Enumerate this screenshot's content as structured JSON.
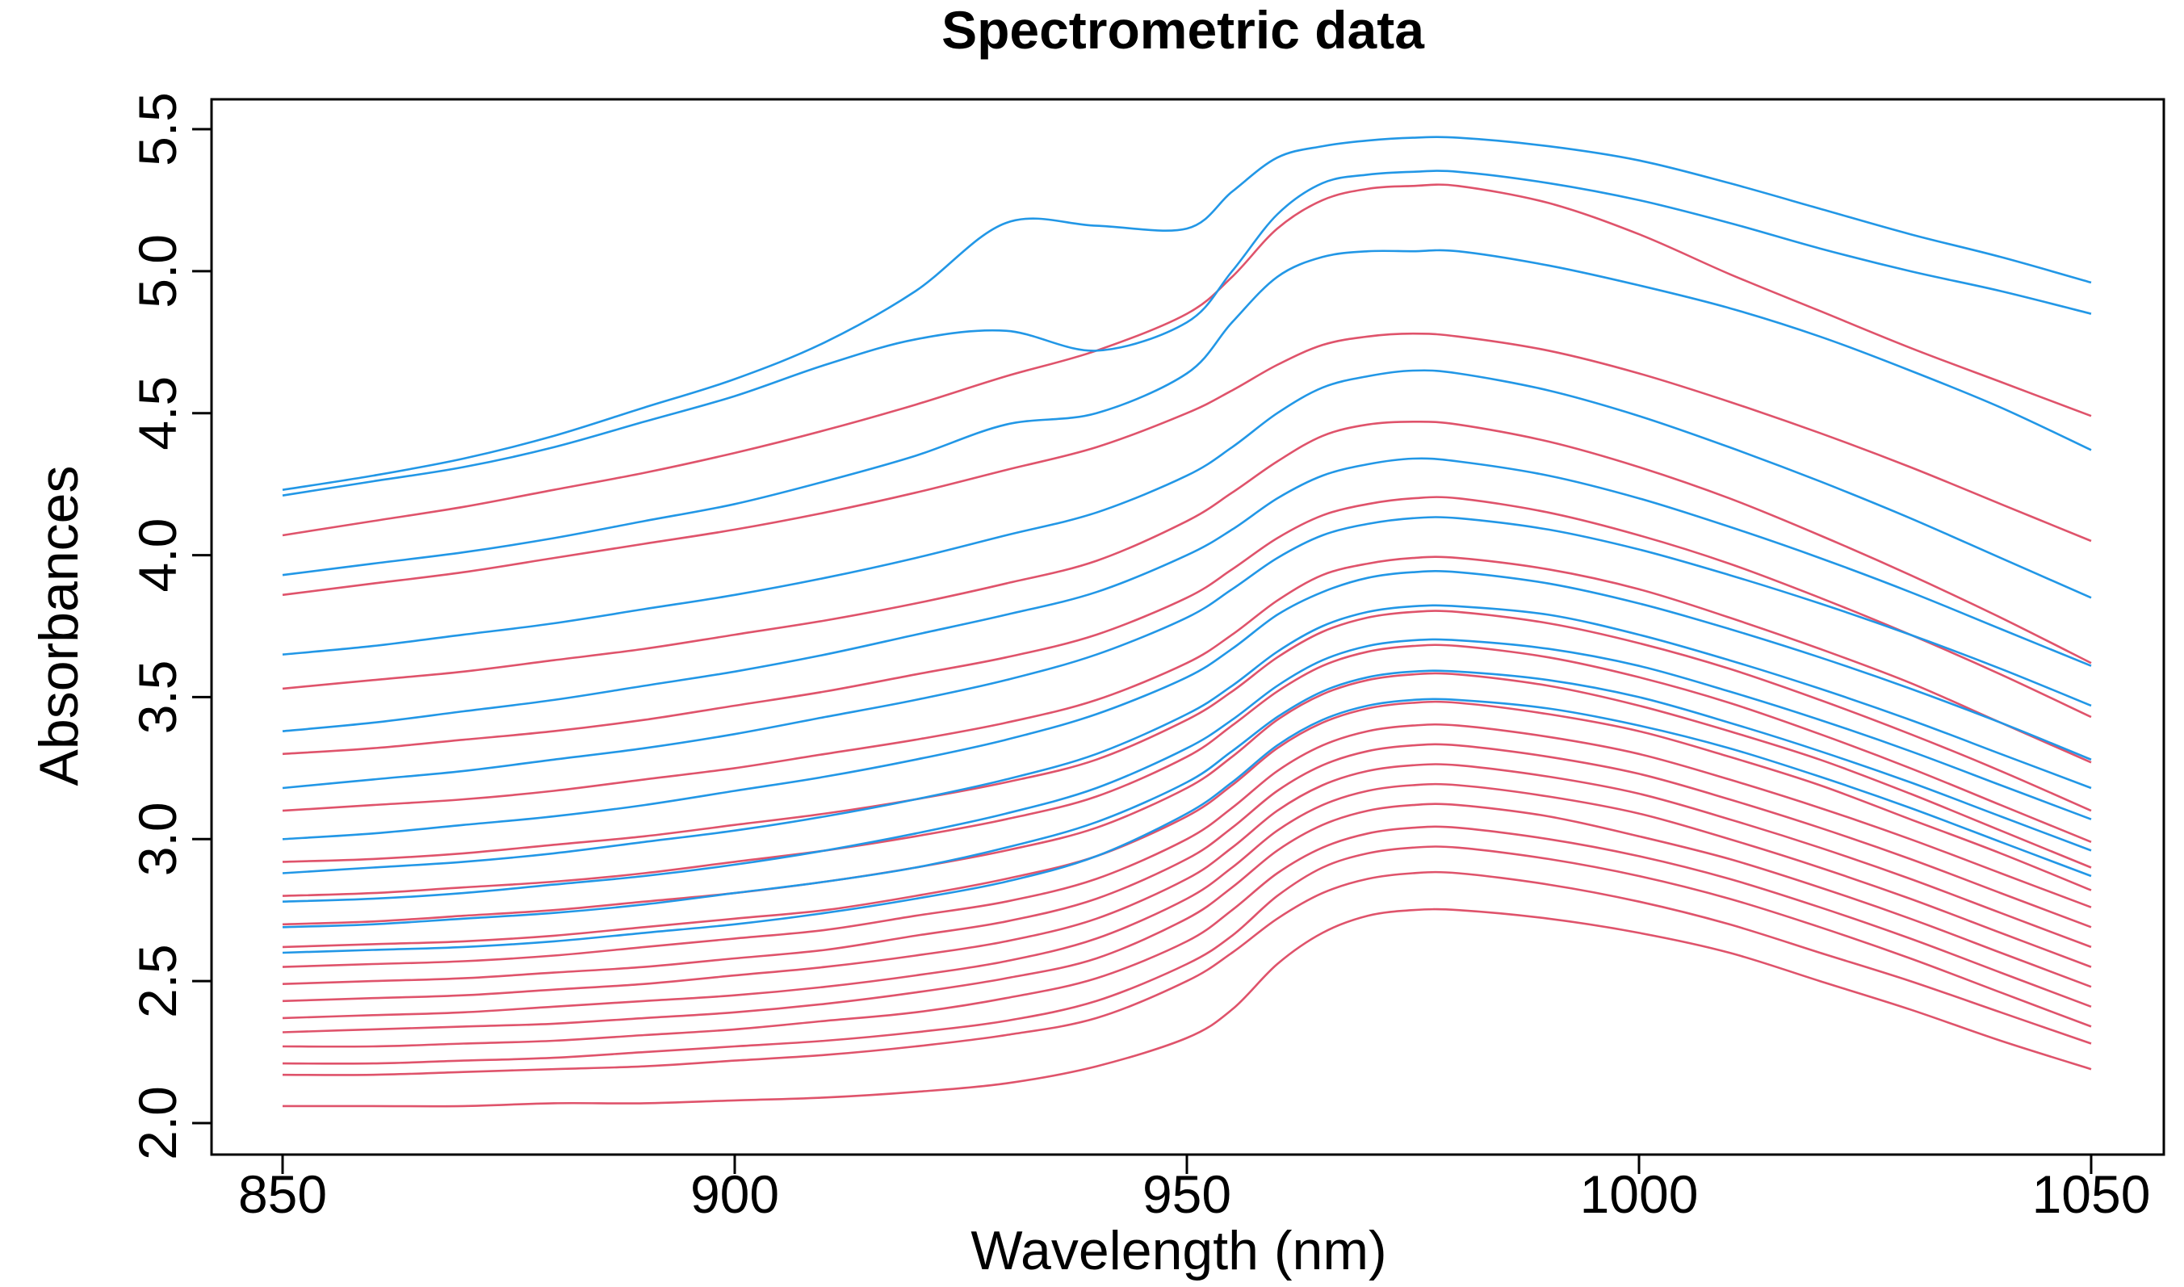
{
  "chart_data": {
    "type": "line",
    "title": "Spectrometric data",
    "xlabel": "Wavelength (nm)",
    "ylabel": "Absorbances",
    "xlim": [
      850,
      1050
    ],
    "ylim": [
      2.0,
      5.5
    ],
    "x_ticks": [
      "850",
      "900",
      "950",
      "1000",
      "1050"
    ],
    "y_ticks": [
      "2.0",
      "2.5",
      "3.0",
      "3.5",
      "4.0",
      "4.5",
      "5.0",
      "5.5"
    ],
    "grid": false,
    "legend": "none",
    "colors": {
      "group_a": "#DF536B",
      "group_b": "#2297E6"
    },
    "x": [
      850,
      860,
      870,
      880,
      890,
      900,
      910,
      920,
      930,
      940,
      950,
      955,
      960,
      965,
      970,
      975,
      980,
      990,
      1000,
      1010,
      1020,
      1030,
      1040,
      1050
    ],
    "series": [
      {
        "color": "#DF536B",
        "values": [
          2.06,
          2.06,
          2.06,
          2.07,
          2.07,
          2.08,
          2.09,
          2.11,
          2.14,
          2.2,
          2.3,
          2.4,
          2.56,
          2.67,
          2.73,
          2.75,
          2.75,
          2.72,
          2.67,
          2.6,
          2.5,
          2.4,
          2.29,
          2.19
        ]
      },
      {
        "color": "#DF536B",
        "values": [
          2.17,
          2.17,
          2.18,
          2.19,
          2.2,
          2.22,
          2.24,
          2.27,
          2.31,
          2.37,
          2.5,
          2.6,
          2.72,
          2.81,
          2.86,
          2.88,
          2.88,
          2.84,
          2.78,
          2.7,
          2.6,
          2.5,
          2.39,
          2.28
        ]
      },
      {
        "color": "#DF536B",
        "values": [
          2.21,
          2.21,
          2.22,
          2.23,
          2.25,
          2.27,
          2.29,
          2.32,
          2.36,
          2.43,
          2.56,
          2.66,
          2.8,
          2.9,
          2.95,
          2.97,
          2.97,
          2.93,
          2.87,
          2.79,
          2.69,
          2.58,
          2.46,
          2.34
        ]
      },
      {
        "color": "#DF536B",
        "values": [
          2.27,
          2.27,
          2.28,
          2.29,
          2.31,
          2.33,
          2.36,
          2.39,
          2.44,
          2.51,
          2.64,
          2.75,
          2.88,
          2.97,
          3.02,
          3.04,
          3.04,
          3.0,
          2.94,
          2.86,
          2.76,
          2.65,
          2.53,
          2.41
        ]
      },
      {
        "color": "#DF536B",
        "values": [
          2.32,
          2.33,
          2.34,
          2.35,
          2.37,
          2.39,
          2.42,
          2.46,
          2.51,
          2.58,
          2.72,
          2.83,
          2.96,
          3.05,
          3.1,
          3.12,
          3.12,
          3.08,
          3.01,
          2.93,
          2.83,
          2.72,
          2.6,
          2.48
        ]
      },
      {
        "color": "#DF536B",
        "values": [
          2.37,
          2.38,
          2.39,
          2.41,
          2.43,
          2.45,
          2.48,
          2.52,
          2.57,
          2.65,
          2.79,
          2.9,
          3.03,
          3.12,
          3.17,
          3.19,
          3.19,
          3.15,
          3.09,
          3.0,
          2.9,
          2.79,
          2.67,
          2.55
        ]
      },
      {
        "color": "#DF536B",
        "values": [
          2.43,
          2.44,
          2.45,
          2.47,
          2.49,
          2.52,
          2.55,
          2.59,
          2.64,
          2.72,
          2.86,
          2.97,
          3.1,
          3.19,
          3.24,
          3.26,
          3.26,
          3.22,
          3.16,
          3.07,
          2.97,
          2.86,
          2.74,
          2.62
        ]
      },
      {
        "color": "#DF536B",
        "values": [
          2.49,
          2.5,
          2.51,
          2.53,
          2.55,
          2.58,
          2.61,
          2.66,
          2.71,
          2.79,
          2.93,
          3.04,
          3.17,
          3.26,
          3.31,
          3.33,
          3.33,
          3.29,
          3.23,
          3.14,
          3.04,
          2.93,
          2.81,
          2.69
        ]
      },
      {
        "color": "#DF536B",
        "values": [
          2.55,
          2.56,
          2.57,
          2.59,
          2.62,
          2.65,
          2.68,
          2.73,
          2.78,
          2.86,
          3.0,
          3.11,
          3.24,
          3.33,
          3.38,
          3.4,
          3.4,
          3.36,
          3.3,
          3.21,
          3.11,
          3.0,
          2.88,
          2.76
        ]
      },
      {
        "color": "#DF536B",
        "values": [
          2.62,
          2.63,
          2.64,
          2.66,
          2.69,
          2.72,
          2.75,
          2.8,
          2.86,
          2.94,
          3.08,
          3.19,
          3.32,
          3.41,
          3.46,
          3.48,
          3.48,
          3.44,
          3.38,
          3.29,
          3.19,
          3.07,
          2.95,
          2.82
        ]
      },
      {
        "color": "#DF536B",
        "values": [
          2.7,
          2.71,
          2.73,
          2.75,
          2.78,
          2.81,
          2.85,
          2.9,
          2.96,
          3.04,
          3.18,
          3.29,
          3.42,
          3.51,
          3.56,
          3.58,
          3.58,
          3.54,
          3.47,
          3.38,
          3.28,
          3.16,
          3.03,
          2.9
        ]
      },
      {
        "color": "#DF536B",
        "values": [
          2.8,
          2.81,
          2.83,
          2.85,
          2.88,
          2.92,
          2.96,
          3.01,
          3.07,
          3.15,
          3.29,
          3.4,
          3.52,
          3.61,
          3.66,
          3.68,
          3.68,
          3.64,
          3.57,
          3.48,
          3.37,
          3.25,
          3.12,
          2.99
        ]
      },
      {
        "color": "#DF536B",
        "values": [
          2.92,
          2.93,
          2.95,
          2.98,
          3.01,
          3.05,
          3.09,
          3.14,
          3.2,
          3.28,
          3.42,
          3.52,
          3.64,
          3.73,
          3.78,
          3.8,
          3.8,
          3.76,
          3.69,
          3.6,
          3.49,
          3.37,
          3.24,
          3.1
        ]
      },
      {
        "color": "#DF536B",
        "values": [
          3.1,
          3.12,
          3.14,
          3.17,
          3.21,
          3.25,
          3.3,
          3.35,
          3.41,
          3.49,
          3.62,
          3.72,
          3.84,
          3.93,
          3.97,
          3.99,
          3.99,
          3.95,
          3.88,
          3.78,
          3.67,
          3.55,
          3.41,
          3.27
        ]
      },
      {
        "color": "#DF536B",
        "values": [
          3.3,
          3.32,
          3.35,
          3.38,
          3.42,
          3.47,
          3.52,
          3.58,
          3.64,
          3.72,
          3.85,
          3.95,
          4.06,
          4.14,
          4.18,
          4.2,
          4.2,
          4.15,
          4.07,
          3.97,
          3.85,
          3.72,
          3.58,
          3.43
        ]
      },
      {
        "color": "#DF536B",
        "values": [
          3.53,
          3.56,
          3.59,
          3.63,
          3.67,
          3.72,
          3.77,
          3.83,
          3.9,
          3.98,
          4.12,
          4.22,
          4.33,
          4.42,
          4.46,
          4.47,
          4.46,
          4.4,
          4.31,
          4.2,
          4.07,
          3.93,
          3.78,
          3.62
        ]
      },
      {
        "color": "#DF536B",
        "values": [
          3.86,
          3.9,
          3.94,
          3.99,
          4.04,
          4.09,
          4.15,
          4.22,
          4.3,
          4.38,
          4.5,
          4.58,
          4.67,
          4.74,
          4.77,
          4.78,
          4.77,
          4.72,
          4.64,
          4.54,
          4.43,
          4.31,
          4.18,
          4.05
        ]
      },
      {
        "color": "#DF536B",
        "values": [
          4.07,
          4.12,
          4.17,
          4.23,
          4.29,
          4.36,
          4.44,
          4.53,
          4.63,
          4.72,
          4.85,
          4.98,
          5.15,
          5.25,
          5.29,
          5.3,
          5.3,
          5.24,
          5.13,
          4.99,
          4.86,
          4.73,
          4.61,
          4.49
        ]
      },
      {
        "color": "#2297E6",
        "values": [
          2.6,
          2.61,
          2.62,
          2.64,
          2.67,
          2.7,
          2.74,
          2.79,
          2.85,
          2.94,
          3.09,
          3.2,
          3.33,
          3.42,
          3.47,
          3.49,
          3.49,
          3.46,
          3.4,
          3.32,
          3.22,
          3.11,
          2.99,
          2.87
        ]
      },
      {
        "color": "#2297E6",
        "values": [
          2.69,
          2.7,
          2.72,
          2.74,
          2.77,
          2.81,
          2.85,
          2.9,
          2.97,
          3.06,
          3.2,
          3.31,
          3.43,
          3.52,
          3.57,
          3.59,
          3.59,
          3.56,
          3.5,
          3.41,
          3.31,
          3.2,
          3.08,
          2.96
        ]
      },
      {
        "color": "#2297E6",
        "values": [
          2.78,
          2.79,
          2.81,
          2.84,
          2.87,
          2.91,
          2.96,
          3.02,
          3.09,
          3.18,
          3.32,
          3.42,
          3.54,
          3.63,
          3.68,
          3.7,
          3.7,
          3.67,
          3.61,
          3.52,
          3.42,
          3.31,
          3.19,
          3.07
        ]
      },
      {
        "color": "#2297E6",
        "values": [
          2.88,
          2.9,
          2.92,
          2.95,
          2.99,
          3.03,
          3.08,
          3.14,
          3.21,
          3.3,
          3.44,
          3.54,
          3.66,
          3.75,
          3.8,
          3.82,
          3.82,
          3.79,
          3.72,
          3.63,
          3.53,
          3.42,
          3.3,
          3.18
        ]
      },
      {
        "color": "#2297E6",
        "values": [
          3.0,
          3.02,
          3.05,
          3.08,
          3.12,
          3.17,
          3.22,
          3.28,
          3.35,
          3.44,
          3.57,
          3.67,
          3.79,
          3.87,
          3.92,
          3.94,
          3.94,
          3.9,
          3.83,
          3.74,
          3.64,
          3.53,
          3.41,
          3.28
        ]
      },
      {
        "color": "#2297E6",
        "values": [
          3.18,
          3.21,
          3.24,
          3.28,
          3.32,
          3.37,
          3.43,
          3.49,
          3.56,
          3.65,
          3.78,
          3.88,
          3.99,
          4.07,
          4.11,
          4.13,
          4.13,
          4.09,
          4.02,
          3.93,
          3.83,
          3.72,
          3.6,
          3.47
        ]
      },
      {
        "color": "#2297E6",
        "values": [
          3.38,
          3.41,
          3.45,
          3.49,
          3.54,
          3.59,
          3.65,
          3.72,
          3.79,
          3.87,
          4.0,
          4.09,
          4.2,
          4.28,
          4.32,
          4.34,
          4.33,
          4.28,
          4.2,
          4.1,
          3.99,
          3.87,
          3.74,
          3.61
        ]
      },
      {
        "color": "#2297E6",
        "values": [
          3.65,
          3.68,
          3.72,
          3.76,
          3.81,
          3.86,
          3.92,
          3.99,
          4.07,
          4.15,
          4.28,
          4.38,
          4.5,
          4.59,
          4.63,
          4.65,
          4.64,
          4.58,
          4.49,
          4.38,
          4.26,
          4.13,
          3.99,
          3.85
        ]
      },
      {
        "color": "#2297E6",
        "values": [
          3.93,
          3.97,
          4.01,
          4.06,
          4.12,
          4.18,
          4.26,
          4.35,
          4.46,
          4.5,
          4.64,
          4.82,
          4.98,
          5.05,
          5.07,
          5.07,
          5.07,
          5.02,
          4.95,
          4.87,
          4.77,
          4.65,
          4.52,
          4.37
        ]
      },
      {
        "color": "#2297E6",
        "values": [
          4.21,
          4.26,
          4.31,
          4.38,
          4.47,
          4.56,
          4.67,
          4.76,
          4.79,
          4.72,
          4.82,
          5.0,
          5.2,
          5.31,
          5.34,
          5.35,
          5.35,
          5.31,
          5.25,
          5.17,
          5.08,
          5.0,
          4.93,
          4.85
        ]
      },
      {
        "color": "#2297E6",
        "values": [
          4.23,
          4.28,
          4.34,
          4.42,
          4.52,
          4.62,
          4.75,
          4.93,
          5.17,
          5.16,
          5.15,
          5.28,
          5.4,
          5.44,
          5.46,
          5.47,
          5.47,
          5.44,
          5.39,
          5.31,
          5.22,
          5.13,
          5.05,
          4.96
        ]
      }
    ]
  }
}
